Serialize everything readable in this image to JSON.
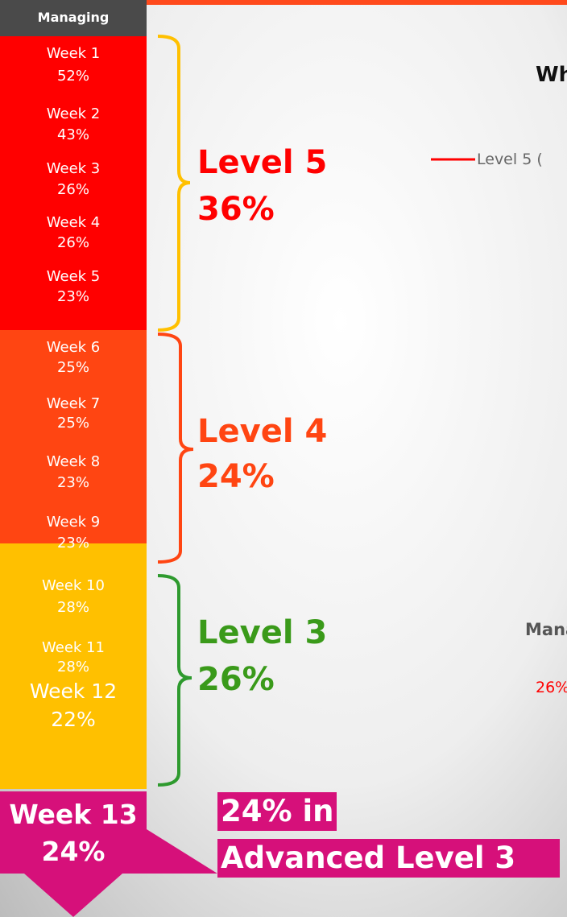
{
  "sidebar": {
    "header": "Managing",
    "weeks": [
      {
        "label": "Week 1",
        "value": "52%"
      },
      {
        "label": "Week 2",
        "value": "43%"
      },
      {
        "label": "Week 3",
        "value": "26%"
      },
      {
        "label": "Week 4",
        "value": "26%"
      },
      {
        "label": "Week 5",
        "value": "23%"
      },
      {
        "label": "Week 6",
        "value": "25%"
      },
      {
        "label": "Week 7",
        "value": "25%"
      },
      {
        "label": "Week 8",
        "value": "23%"
      },
      {
        "label": "Week 9",
        "value": "23%"
      },
      {
        "label": "Week 10",
        "value": "28%"
      },
      {
        "label": "Week 11",
        "value": "28%"
      },
      {
        "label": "Week 12",
        "value": "22%"
      }
    ]
  },
  "levels": [
    {
      "name": "Level 5",
      "value": "36%"
    },
    {
      "name": "Level 4",
      "value": "24%"
    },
    {
      "name": "Level 3",
      "value": "26%"
    }
  ],
  "callout": {
    "week": "Week 13",
    "value": "24%",
    "line1": "24% in",
    "line2": "Advanced Level 3"
  },
  "panel": {
    "title": "Wh",
    "legend": "Level 5 (",
    "subtitle": "Mana",
    "stat": "26%"
  }
}
